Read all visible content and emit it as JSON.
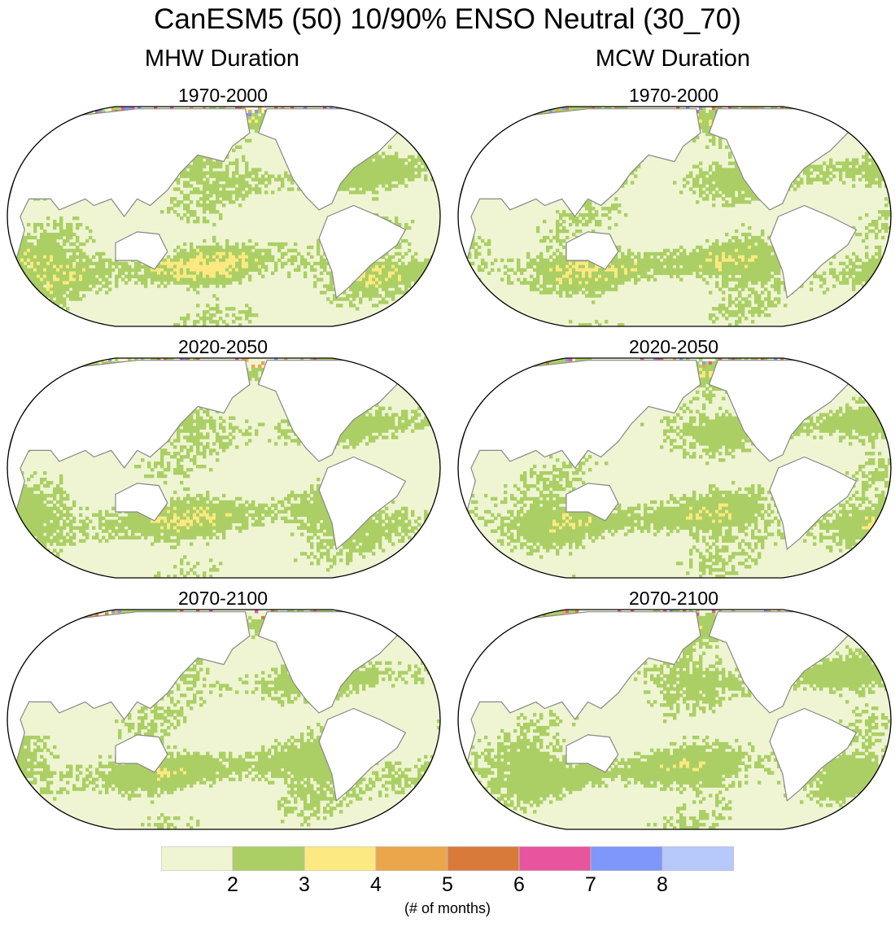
{
  "title": "CanESM5 (50) 10/90% ENSO Neutral (30_70)",
  "columns": [
    {
      "title": "MHW Duration",
      "panels": [
        "1970-2000",
        "2020-2050",
        "2070-2100"
      ]
    },
    {
      "title": "MCW Duration",
      "panels": [
        "1970-2000",
        "2020-2050",
        "2070-2100"
      ]
    }
  ],
  "colorbar": {
    "colors": [
      "#eff5d3",
      "#abcf64",
      "#fde981",
      "#eba54a",
      "#d87a3a",
      "#e6559e",
      "#7f97fb",
      "#b7c8fb"
    ],
    "ticks": [
      "2",
      "3",
      "4",
      "5",
      "6",
      "7",
      "8"
    ],
    "unit": "(# of months)"
  }
}
